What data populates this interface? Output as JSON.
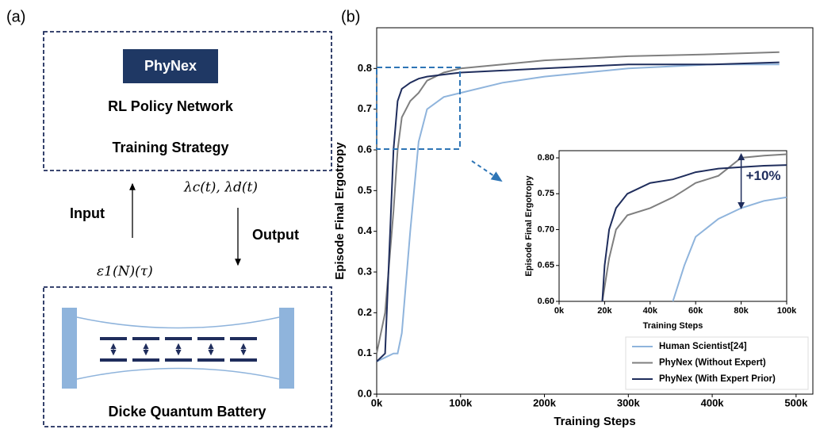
{
  "panel_a": {
    "label": "(a)",
    "badge": "PhyNex",
    "lines": [
      "RL Policy Network",
      "Training Strategy"
    ],
    "controls": "λc(t), λd(t)",
    "output": "Output",
    "input": "Input",
    "state": "ε1(N)(τ)",
    "battery": "Dicke Quantum Battery"
  },
  "panel_b_label": "(b)",
  "chart_data": [
    {
      "type": "line",
      "xlabel": "Training Steps",
      "ylabel": "Episode Final Ergotropy",
      "x": [
        0,
        10000,
        20000,
        25000,
        30000,
        40000,
        50000,
        60000,
        80000,
        100000,
        150000,
        200000,
        300000,
        400000,
        480000
      ],
      "series": [
        {
          "name": "Human Scientist[24]",
          "color": "#8fb4dc",
          "values": [
            0.08,
            0.09,
            0.1,
            0.1,
            0.15,
            0.4,
            0.62,
            0.7,
            0.73,
            0.74,
            0.765,
            0.78,
            0.8,
            0.81,
            0.81
          ]
        },
        {
          "name": "PhyNex (Without Expert)",
          "color": "#7f7f7f",
          "values": [
            0.1,
            0.2,
            0.45,
            0.6,
            0.68,
            0.72,
            0.74,
            0.77,
            0.79,
            0.8,
            0.81,
            0.82,
            0.83,
            0.835,
            0.84
          ]
        },
        {
          "name": "PhyNex (With Expert Prior)",
          "color": "#1f2d5c",
          "values": [
            0.08,
            0.1,
            0.6,
            0.72,
            0.75,
            0.765,
            0.775,
            0.78,
            0.785,
            0.79,
            0.795,
            0.8,
            0.81,
            0.81,
            0.815
          ]
        }
      ],
      "xlim": [
        0,
        520000
      ],
      "xticks": [
        {
          "value": 0,
          "label": "0k"
        },
        {
          "value": 100000,
          "label": "100k"
        },
        {
          "value": 200000,
          "label": "200k"
        },
        {
          "value": 300000,
          "label": "300k"
        },
        {
          "value": 400000,
          "label": "400k"
        },
        {
          "value": 500000,
          "label": "500k"
        }
      ],
      "ylim": [
        0,
        0.9
      ],
      "yticks": [
        {
          "value": 0,
          "label": "0.0"
        },
        0.1,
        0.2,
        0.3,
        0.4,
        0.5,
        0.6,
        0.7,
        0.8
      ],
      "legend": "lower right"
    },
    {
      "type": "line",
      "xlabel": "Training Steps",
      "ylabel": "Episode Final Ergotropy",
      "annotation": "+10%",
      "x": [
        0,
        10000,
        19000,
        20000,
        22000,
        25000,
        30000,
        40000,
        50000,
        55000,
        60000,
        70000,
        80000,
        90000,
        100000
      ],
      "series": [
        {
          "color": "#8fb4dc",
          "values": [
            null,
            null,
            null,
            null,
            null,
            null,
            null,
            null,
            0.6,
            0.65,
            0.69,
            0.715,
            0.73,
            0.74,
            0.745
          ]
        },
        {
          "color": "#7f7f7f",
          "values": [
            null,
            null,
            0.6,
            0.62,
            0.66,
            0.7,
            0.72,
            0.73,
            0.745,
            0.755,
            0.765,
            0.775,
            0.8,
            0.803,
            0.805
          ]
        },
        {
          "color": "#1f2d5c",
          "values": [
            null,
            null,
            0.6,
            0.65,
            0.7,
            0.73,
            0.75,
            0.765,
            0.77,
            0.775,
            0.78,
            0.785,
            0.787,
            0.789,
            0.79
          ]
        }
      ],
      "xlim": [
        0,
        100000
      ],
      "xticks": [
        {
          "value": 0,
          "label": "0k"
        },
        {
          "value": 20000,
          "label": "20k"
        },
        {
          "value": 40000,
          "label": "40k"
        },
        {
          "value": 60000,
          "label": "60k"
        },
        {
          "value": 80000,
          "label": "80k"
        },
        {
          "value": 100000,
          "label": "100k"
        }
      ],
      "ylim": [
        0.6,
        0.81
      ],
      "yticks": [
        {
          "value": 0.6,
          "label": "0.60"
        },
        {
          "value": 0.65,
          "label": "0.65"
        },
        {
          "value": 0.7,
          "label": "0.70"
        },
        {
          "value": 0.75,
          "label": "0.75"
        },
        {
          "value": 0.8,
          "label": "0.80"
        }
      ]
    }
  ]
}
